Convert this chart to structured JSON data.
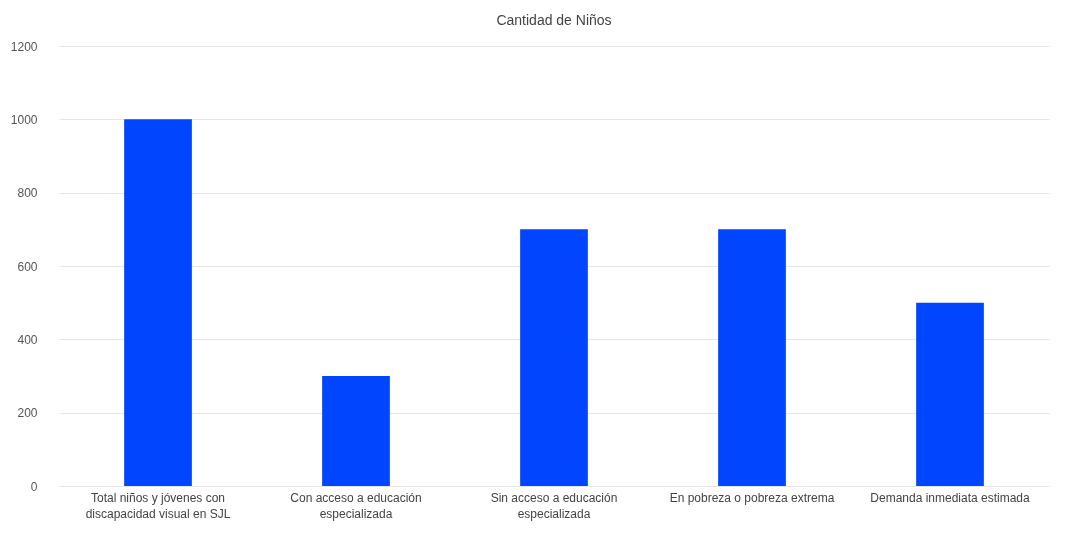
{
  "chart_data": {
    "type": "bar",
    "title": "Cantidad de Niños",
    "categories": [
      "Total niños y jóvenes con discapacidad visual en SJL",
      "Con acceso a educación especializada",
      "Sin acceso a educación especializada",
      "En pobreza o pobreza extrema",
      "Demanda inmediata estimada"
    ],
    "values": [
      1000,
      300,
      700,
      700,
      500
    ],
    "color": "#0046ff",
    "ylim": [
      0,
      1200
    ],
    "yticks": [
      0,
      200,
      400,
      600,
      800,
      1000,
      1200
    ],
    "grid": "y"
  }
}
